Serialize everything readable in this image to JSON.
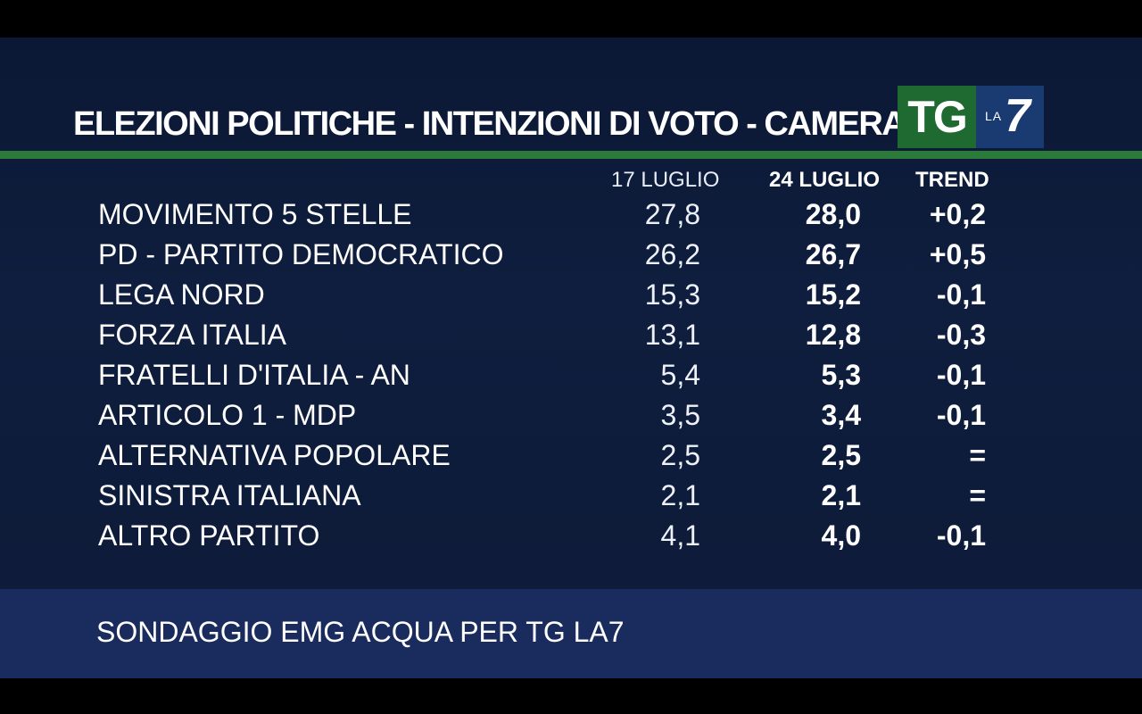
{
  "header": {
    "title": "ELEZIONI POLITICHE - INTENZIONI DI VOTO - CAMERA",
    "logo_tg": "TG",
    "logo_la": "LA",
    "logo_seven": "7"
  },
  "columns": {
    "previous": "17 LUGLIO",
    "current": "24 LUGLIO",
    "trend": "TREND"
  },
  "rows": [
    {
      "party": "MOVIMENTO 5 STELLE",
      "prev": "27,8",
      "curr": "28,0",
      "trend": "+0,2"
    },
    {
      "party": "PD - PARTITO DEMOCRATICO",
      "prev": "26,2",
      "curr": "26,7",
      "trend": "+0,5"
    },
    {
      "party": "LEGA NORD",
      "prev": "15,3",
      "curr": "15,2",
      "trend": "-0,1"
    },
    {
      "party": "FORZA ITALIA",
      "prev": "13,1",
      "curr": "12,8",
      "trend": "-0,3"
    },
    {
      "party": "FRATELLI D'ITALIA - AN",
      "prev": "5,4",
      "curr": "5,3",
      "trend": "-0,1"
    },
    {
      "party": "ARTICOLO 1 - MDP",
      "prev": "3,5",
      "curr": "3,4",
      "trend": "-0,1"
    },
    {
      "party": "ALTERNATIVA POPOLARE",
      "prev": "2,5",
      "curr": "2,5",
      "trend": "="
    },
    {
      "party": "SINISTRA ITALIANA",
      "prev": "2,1",
      "curr": "2,1",
      "trend": "="
    },
    {
      "party": "ALTRO PARTITO",
      "prev": "4,1",
      "curr": "4,0",
      "trend": "-0,1"
    }
  ],
  "footer": {
    "source": "SONDAGGIO EMG ACQUA PER TG LA7"
  },
  "colors": {
    "background": "#0d1a38",
    "green_rule": "#2c7a3a",
    "footer_band": "#1a2c5e",
    "logo_tg_bg": "#1f6a30",
    "logo_la7_bg": "#1a3a72"
  }
}
